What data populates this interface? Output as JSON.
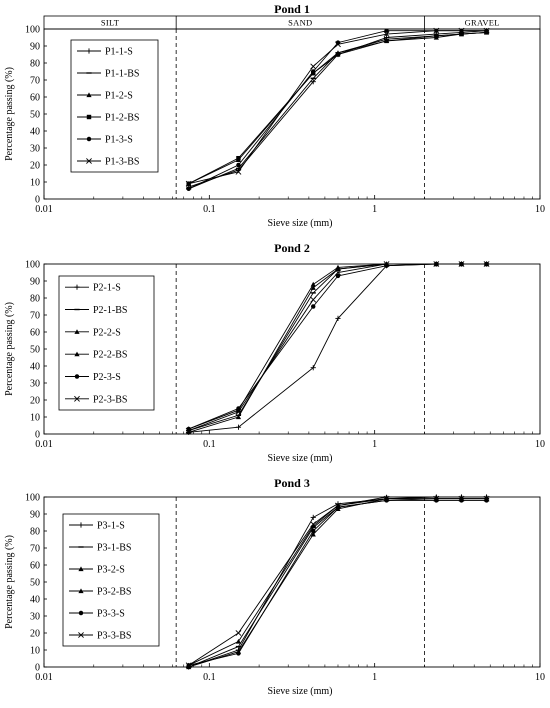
{
  "chart_data": [
    {
      "type": "line",
      "title": "Pond 1",
      "xlabel": "Sieve size (mm)",
      "ylabel": "Percentage passing (%)",
      "xscale": "log",
      "xlim": [
        0.01,
        10
      ],
      "ylim": [
        0,
        100
      ],
      "x_ticks": [
        "0.01",
        "0.1",
        "1",
        "10"
      ],
      "y_ticks": [
        "0",
        "10",
        "20",
        "30",
        "40",
        "50",
        "60",
        "70",
        "80",
        "90",
        "100"
      ],
      "zones": [
        "SILT",
        "SAND",
        "GRAVEL"
      ],
      "zone_boundaries": [
        0.063,
        2.0
      ],
      "legend_position": "top-left",
      "x": [
        0.075,
        0.15,
        0.425,
        0.6,
        1.18,
        2.36,
        3.35,
        4.75
      ],
      "series": [
        {
          "name": "P1-1-S",
          "marker": "plus",
          "values": [
            7,
            17,
            69,
            85,
            95,
            97,
            98,
            99
          ]
        },
        {
          "name": "P1-1-BS",
          "marker": "dash",
          "values": [
            6,
            18,
            71,
            86,
            94,
            96,
            97,
            98
          ]
        },
        {
          "name": "P1-2-S",
          "marker": "triangle",
          "values": [
            9,
            23,
            74,
            86,
            93,
            95,
            97,
            98
          ]
        },
        {
          "name": "P1-2-BS",
          "marker": "square",
          "values": [
            9,
            24,
            74,
            85,
            93,
            96,
            97,
            98
          ]
        },
        {
          "name": "P1-3-S",
          "marker": "circle",
          "values": [
            6,
            20,
            75,
            92,
            99,
            99,
            99,
            99
          ]
        },
        {
          "name": "P1-3-BS",
          "marker": "x",
          "values": [
            9,
            16,
            78,
            91,
            97,
            99,
            99,
            99
          ]
        }
      ]
    },
    {
      "type": "line",
      "title": "Pond 2",
      "xlabel": "Sieve size (mm)",
      "ylabel": "Percentage passing (%)",
      "xscale": "log",
      "xlim": [
        0.01,
        10
      ],
      "ylim": [
        0,
        100
      ],
      "x_ticks": [
        "0.01",
        "0.1",
        "1",
        "10"
      ],
      "y_ticks": [
        "0",
        "10",
        "20",
        "30",
        "40",
        "50",
        "60",
        "70",
        "80",
        "90",
        "100"
      ],
      "zone_boundaries": [
        0.063,
        2.0
      ],
      "legend_position": "top-left",
      "x": [
        0.075,
        0.15,
        0.425,
        0.6,
        1.18,
        2.36,
        3.35,
        4.75
      ],
      "series": [
        {
          "name": "P2-1-S",
          "marker": "plus",
          "values": [
            1,
            4,
            39,
            68,
            99,
            100,
            100,
            100
          ]
        },
        {
          "name": "P2-1-BS",
          "marker": "dash",
          "values": [
            2,
            11,
            83,
            97,
            100,
            100,
            100,
            100
          ]
        },
        {
          "name": "P2-2-S",
          "marker": "triangle",
          "values": [
            3,
            14,
            88,
            98,
            100,
            100,
            100,
            100
          ]
        },
        {
          "name": "P2-2-BS",
          "marker": "triangle",
          "values": [
            1,
            10,
            86,
            97,
            100,
            100,
            100,
            100
          ]
        },
        {
          "name": "P2-3-S",
          "marker": "circle",
          "values": [
            3,
            15,
            75,
            93,
            99,
            100,
            100,
            100
          ]
        },
        {
          "name": "P2-3-BS",
          "marker": "x",
          "values": [
            2,
            13,
            79,
            95,
            100,
            100,
            100,
            100
          ]
        }
      ]
    },
    {
      "type": "line",
      "title": "Pond 3",
      "xlabel": "Sieve size (mm)",
      "ylabel": "Percentage passing (%)",
      "xscale": "log",
      "xlim": [
        0.01,
        10
      ],
      "ylim": [
        0,
        100
      ],
      "x_ticks": [
        "0.01",
        "0.1",
        "1",
        "10"
      ],
      "y_ticks": [
        "0",
        "10",
        "20",
        "30",
        "40",
        "50",
        "60",
        "70",
        "80",
        "90",
        "100"
      ],
      "zone_boundaries": [
        0.063,
        2.0
      ],
      "legend_position": "top-left",
      "x": [
        0.075,
        0.15,
        0.425,
        0.6,
        1.18,
        2.36,
        3.35,
        4.75
      ],
      "series": [
        {
          "name": "P3-1-S",
          "marker": "plus",
          "values": [
            0,
            10,
            88,
            96,
            99,
            100,
            100,
            100
          ]
        },
        {
          "name": "P3-1-BS",
          "marker": "dash",
          "values": [
            0,
            12,
            82,
            94,
            98,
            99,
            99,
            99
          ]
        },
        {
          "name": "P3-2-S",
          "marker": "triangle",
          "values": [
            1,
            15,
            83,
            95,
            100,
            100,
            100,
            100
          ]
        },
        {
          "name": "P3-2-BS",
          "marker": "triangle",
          "values": [
            0,
            9,
            78,
            93,
            99,
            99,
            99,
            99
          ]
        },
        {
          "name": "P3-3-S",
          "marker": "circle",
          "values": [
            1,
            8,
            80,
            94,
            98,
            98,
            98,
            98
          ]
        },
        {
          "name": "P3-3-BS",
          "marker": "x",
          "values": [
            1,
            20,
            84,
            95,
            99,
            99,
            99,
            99
          ]
        }
      ]
    }
  ]
}
